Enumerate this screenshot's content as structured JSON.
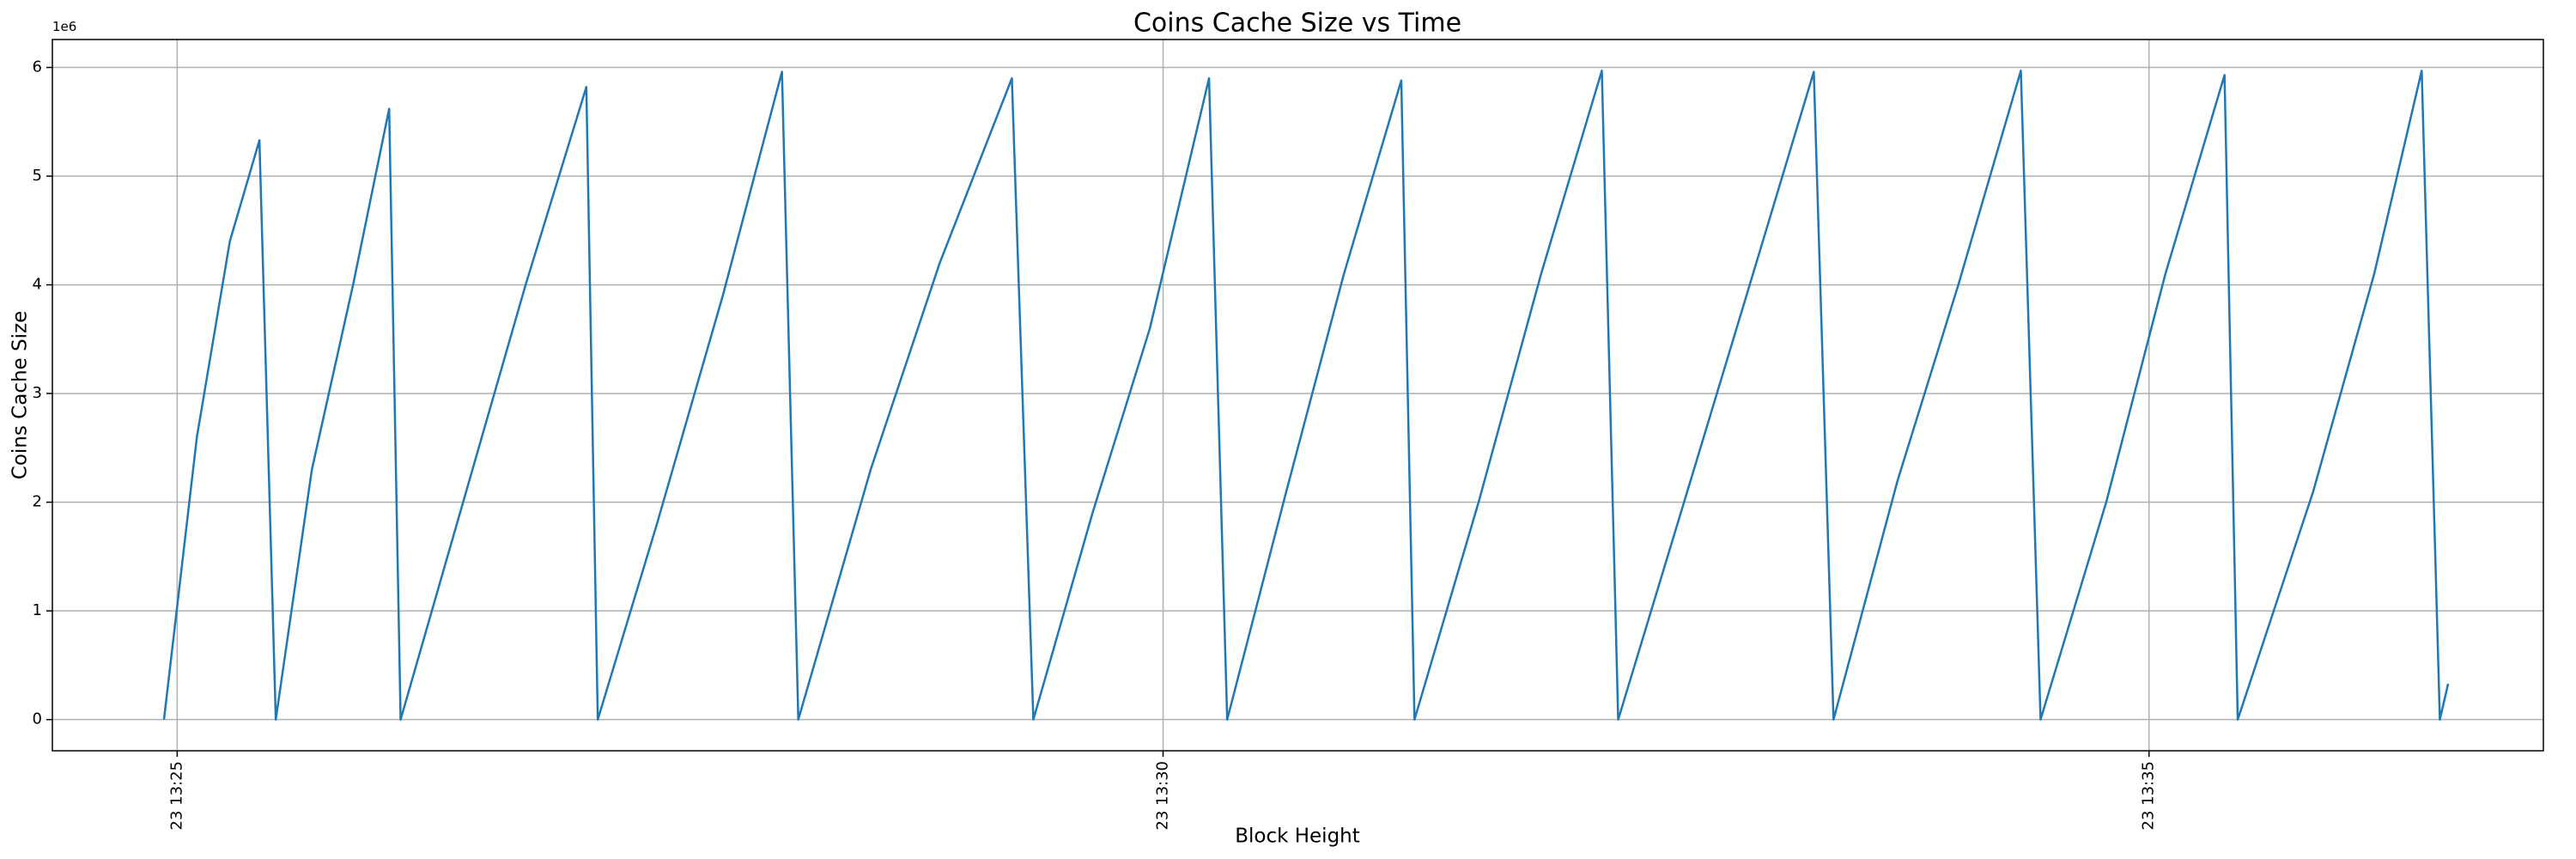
{
  "chart_data": {
    "type": "line",
    "title": "Coins Cache Size vs Time",
    "x_label": "Block Height",
    "y_label": "Coins Cache Size",
    "y_offset_label": "1e6",
    "color": "#1f77b4",
    "grid": true,
    "x": [
      804.933,
      805.1,
      805.267,
      805.417,
      805.5,
      805.683,
      805.892,
      806.075,
      806.133,
      806.45,
      806.767,
      807.075,
      807.133,
      807.433,
      807.767,
      808.067,
      808.15,
      808.517,
      808.867,
      809.233,
      809.342,
      809.642,
      809.933,
      810.233,
      810.325,
      810.625,
      810.917,
      811.208,
      811.275,
      811.6,
      811.917,
      812.225,
      812.308,
      812.642,
      812.975,
      813.3,
      813.4,
      813.725,
      814.033,
      814.35,
      814.45,
      814.783,
      815.083,
      815.383,
      815.45,
      815.833,
      816.142,
      816.383,
      816.475,
      816.517
    ],
    "values": [
      0,
      2600000,
      4400000,
      5330000,
      0,
      2300000,
      4000000,
      5620000,
      0,
      2000000,
      4000000,
      5820000,
      0,
      1800000,
      3900000,
      5960000,
      0,
      2300000,
      4200000,
      5900000,
      0,
      1900000,
      3600000,
      5900000,
      0,
      2100000,
      4100000,
      5880000,
      0,
      2000000,
      4100000,
      5970000,
      0,
      2000000,
      4000000,
      5960000,
      0,
      2200000,
      4000000,
      5970000,
      0,
      2000000,
      4100000,
      5930000,
      0,
      2100000,
      4100000,
      5970000,
      0,
      330000
    ],
    "xlim": [
      804.367,
      817.0
    ],
    "xticks": [
      {
        "value": 805,
        "label": "23 13:25"
      },
      {
        "value": 810,
        "label": "23 13:30"
      },
      {
        "value": 815,
        "label": "23 13:35"
      }
    ],
    "ylim": [
      -287000,
      6257000
    ],
    "yticks": [
      {
        "value": 0,
        "label": "0"
      },
      {
        "value": 1000000,
        "label": "1"
      },
      {
        "value": 2000000,
        "label": "2"
      },
      {
        "value": 3000000,
        "label": "3"
      },
      {
        "value": 4000000,
        "label": "4"
      },
      {
        "value": 5000000,
        "label": "5"
      },
      {
        "value": 6000000,
        "label": "6"
      }
    ]
  }
}
